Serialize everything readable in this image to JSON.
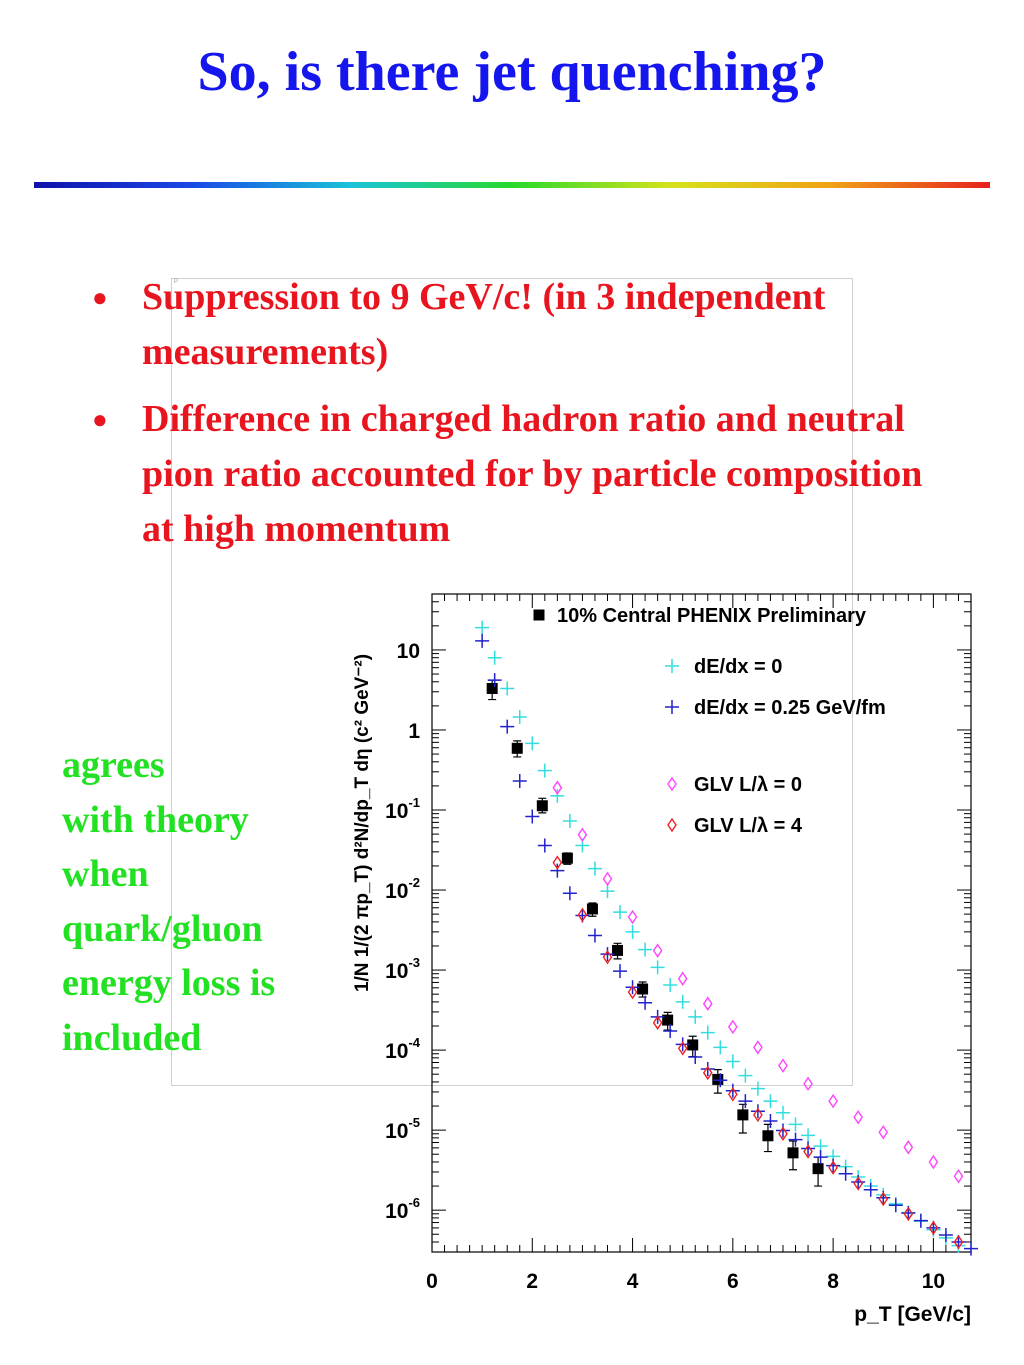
{
  "slide": {
    "title": "So, is there jet quenching?",
    "bullets": [
      "Suppression to 9 GeV/c!  (in 3 independent measurements)",
      "Difference in charged hadron ratio and neutral pion ratio accounted for by particle composition at high momentum"
    ],
    "bullet_symbol": "●",
    "side_note": "agrees\nwith theory\nwhen\nquark/gluon\nenergy loss is\nincluded",
    "colors": {
      "title": "#1515ee",
      "bullets": "#e8141e",
      "side_note": "#22e022"
    }
  },
  "chart_data": {
    "type": "scatter",
    "title": "",
    "xlabel": "p_T [GeV/c]",
    "ylabel": "1/N 1/(2 πp_T) d²N/dp_T dη  (c² GeV⁻²)",
    "xlim": [
      0,
      10.75
    ],
    "ylim": [
      3e-07,
      50
    ],
    "y_scale": "log",
    "x_ticks": [
      0,
      2,
      4,
      6,
      8,
      10
    ],
    "y_ticks": [
      {
        "value": 10,
        "base": "10",
        "exp": ""
      },
      {
        "value": 1,
        "base": "1",
        "exp": ""
      },
      {
        "value": 0.1,
        "base": "10",
        "exp": "-1"
      },
      {
        "value": 0.01,
        "base": "10",
        "exp": "-2"
      },
      {
        "value": 0.001,
        "base": "10",
        "exp": "-3"
      },
      {
        "value": 0.0001,
        "base": "10",
        "exp": "-4"
      },
      {
        "value": 1e-05,
        "base": "10",
        "exp": "-5"
      },
      {
        "value": 1e-06,
        "base": "10",
        "exp": "-6"
      }
    ],
    "legend_position": "top-right",
    "series": [
      {
        "name": "10% Central PHENIX Preliminary",
        "marker": "square",
        "color": "#000000",
        "x": [
          1.2,
          1.7,
          2.2,
          2.7,
          3.2,
          3.7,
          4.2,
          4.7,
          5.2,
          5.7,
          6.2,
          6.7,
          7.2,
          7.7
        ],
        "y": [
          3.3,
          0.59,
          0.113,
          0.025,
          0.0058,
          0.00176,
          0.00058,
          0.000237,
          0.000116,
          4.3e-05,
          1.55e-05,
          8.5e-06,
          5.2e-06,
          3.3e-06
        ],
        "err_low": [
          2.4,
          0.46,
          0.092,
          0.021,
          0.0047,
          0.00138,
          0.00046,
          0.000178,
          8.3e-05,
          2.9e-05,
          9.2e-06,
          5.4e-06,
          3.2e-06,
          2e-06
        ],
        "err_high": [
          4.2,
          0.73,
          0.14,
          0.029,
          0.0069,
          0.00216,
          0.00071,
          0.000296,
          0.000149,
          5.7e-05,
          2.1e-05,
          1.18e-05,
          7.3e-06,
          4.6e-06
        ]
      },
      {
        "name": "dE/dx = 0",
        "marker": "plus",
        "color": "#33dddd",
        "x": [
          1.0,
          1.25,
          1.5,
          1.75,
          2.0,
          2.25,
          2.5,
          2.75,
          3.0,
          3.25,
          3.5,
          3.75,
          4.0,
          4.25,
          4.5,
          4.75,
          5.0,
          5.25,
          5.5,
          5.75,
          6.0,
          6.25,
          6.5,
          6.75,
          7.0,
          7.25,
          7.5,
          7.75,
          8.0,
          8.25,
          8.5,
          8.75,
          9.0,
          9.25,
          9.5,
          9.75,
          10.0,
          10.25,
          10.5,
          10.75
        ],
        "y": [
          19,
          8,
          3.3,
          1.45,
          0.68,
          0.31,
          0.15,
          0.073,
          0.036,
          0.0185,
          0.0097,
          0.0053,
          0.003,
          0.0018,
          0.00108,
          0.00065,
          0.0004,
          0.00026,
          0.000165,
          0.000108,
          7.2e-05,
          4.8e-05,
          3.3e-05,
          2.3e-05,
          1.65e-05,
          1.18e-05,
          8.6e-06,
          6.3e-06,
          4.7e-06,
          3.5e-06,
          2.6e-06,
          2e-06,
          1.55e-06,
          1.2e-06,
          9.3e-07,
          7.3e-07,
          5.7e-07,
          4.5e-07,
          3.6e-07,
          2.9e-07
        ]
      },
      {
        "name": "dE/dx = 0.25 GeV/fm",
        "marker": "plus",
        "color": "#2222cc",
        "x": [
          1.0,
          1.25,
          1.5,
          1.75,
          2.0,
          2.25,
          2.5,
          2.75,
          3.0,
          3.25,
          3.5,
          3.75,
          4.0,
          4.25,
          4.5,
          4.75,
          5.0,
          5.25,
          5.5,
          5.75,
          6.0,
          6.25,
          6.5,
          6.75,
          7.0,
          7.25,
          7.5,
          7.75,
          8.0,
          8.25,
          8.5,
          8.75,
          9.0,
          9.25,
          9.5,
          9.75,
          10.0,
          10.25,
          10.5,
          10.75
        ],
        "y": [
          13,
          4.2,
          1.1,
          0.23,
          0.083,
          0.036,
          0.0175,
          0.0091,
          0.0048,
          0.0027,
          0.00158,
          0.00097,
          0.00061,
          0.00039,
          0.00026,
          0.000173,
          0.000118,
          8.2e-05,
          5.8e-05,
          4.2e-05,
          3.1e-05,
          2.3e-05,
          1.72e-05,
          1.3e-05,
          9.9e-06,
          7.6e-06,
          5.9e-06,
          4.6e-06,
          3.6e-06,
          2.85e-06,
          2.25e-06,
          1.8e-06,
          1.43e-06,
          1.15e-06,
          9.2e-07,
          7.4e-07,
          6e-07,
          4.9e-07,
          4e-07,
          3.3e-07
        ]
      },
      {
        "name": "GLV L/λ = 0",
        "marker": "diamond",
        "color": "#ff44ff",
        "x": [
          2.5,
          3.0,
          3.5,
          4.0,
          4.5,
          5.0,
          5.5,
          6.0,
          6.5,
          7.0,
          7.5,
          8.0,
          8.5,
          9.0,
          9.5,
          10.0,
          10.5
        ],
        "y": [
          0.19,
          0.049,
          0.0138,
          0.0046,
          0.00175,
          0.00078,
          0.00038,
          0.000195,
          0.000108,
          6.4e-05,
          3.8e-05,
          2.3e-05,
          1.45e-05,
          9.4e-06,
          6.1e-06,
          4e-06,
          2.65e-06
        ]
      },
      {
        "name": "GLV L/λ = 4",
        "marker": "diamond",
        "color": "#ee2222",
        "x": [
          2.5,
          3.0,
          3.5,
          4.0,
          4.5,
          5.0,
          5.5,
          6.0,
          6.5,
          7.0,
          7.5,
          8.0,
          8.5,
          9.0,
          9.5,
          10.0,
          10.5
        ],
        "y": [
          0.022,
          0.0049,
          0.00145,
          0.00053,
          0.00022,
          0.000105,
          5.2e-05,
          2.8e-05,
          1.55e-05,
          9e-06,
          5.4e-06,
          3.4e-06,
          2.15e-06,
          1.38e-06,
          9e-07,
          6e-07,
          4e-07
        ]
      }
    ]
  }
}
